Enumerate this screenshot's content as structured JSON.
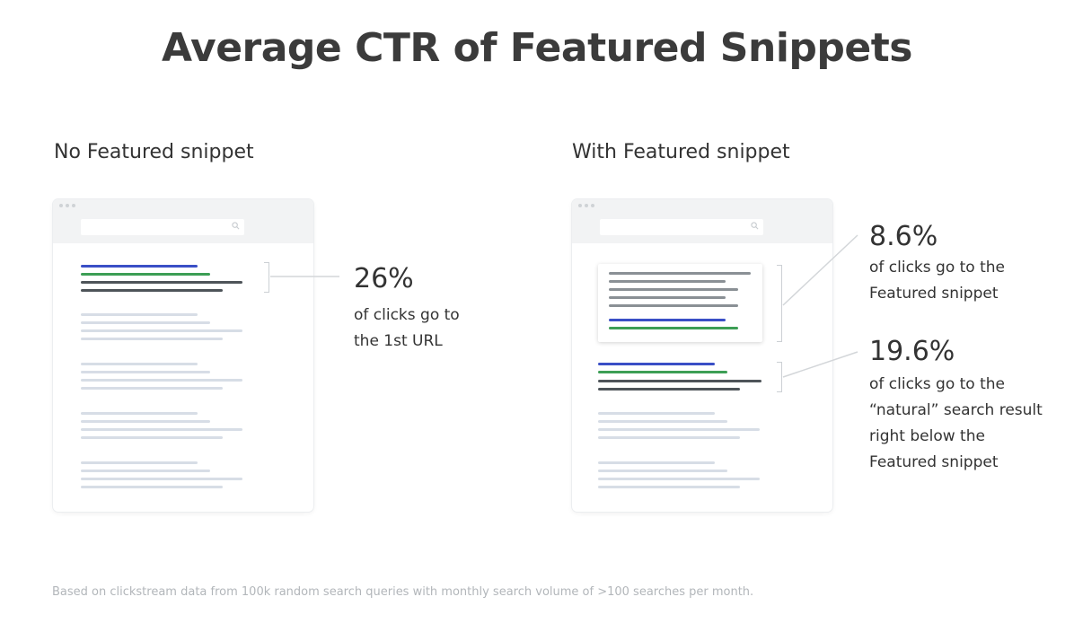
{
  "title": "Average CTR of Featured Snippets",
  "left_panel": {
    "heading": "No Featured snippet",
    "callout": {
      "value": "26%",
      "text": "of clicks go to the 1st URL"
    }
  },
  "right_panel": {
    "heading": "With Featured snippet",
    "callout_snippet": {
      "value": "8.6%",
      "text": "of clicks go to the Featured snippet"
    },
    "callout_result": {
      "value": "19.6%",
      "text": "of clicks go to the “natural” search result right below the Featured snippet"
    }
  },
  "footnote": "Based on clickstream data from 100k random search queries with monthly search volume of >100 searches per month.",
  "colors": {
    "link_blue": "#3a4fc6",
    "url_green": "#3c9e55",
    "text_dark": "#4e5459",
    "placeholder": "#d7dde6"
  }
}
